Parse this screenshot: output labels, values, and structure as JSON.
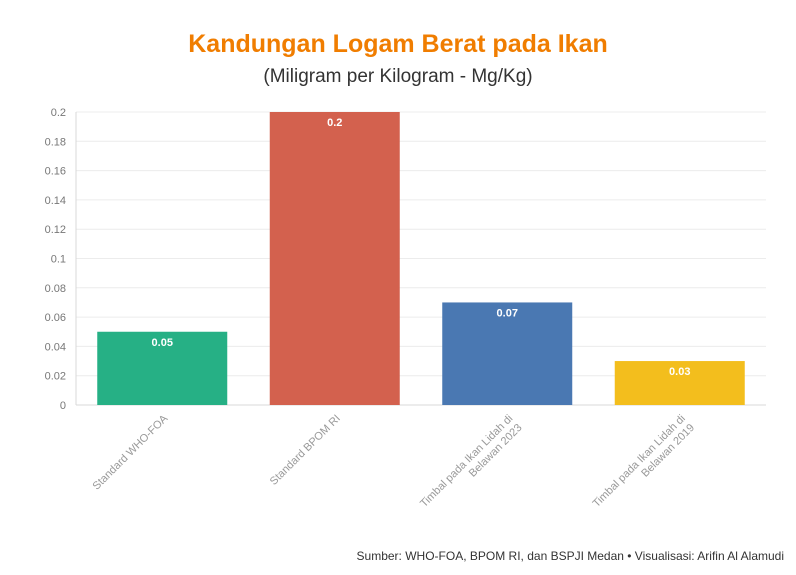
{
  "header": {
    "title": "Kandungan Logam Berat pada Ikan",
    "subtitle": "(Miligram per Kilogram - Mg/Kg)"
  },
  "footer": {
    "source": "Sumber: WHO-FOA, BPOM RI, dan BSPJI Medan • Visualisasi: Arifin Al Alamudi"
  },
  "chart_data": {
    "type": "bar",
    "title": "Kandungan Logam Berat pada Ikan",
    "subtitle": "(Miligram per Kilogram - Mg/Kg)",
    "categories": [
      "Standard WHO-FOA",
      "Standard BPOM RI",
      "Timbal pada Ikan Lidah di Belawan 2023",
      "Timbal pada Ikan Lidah di Belawan 2019"
    ],
    "category_lines": [
      [
        "Standard WHO-FOA"
      ],
      [
        "Standard BPOM RI"
      ],
      [
        "Timbal pada Ikan Lidah di",
        "Belawan 2023"
      ],
      [
        "Timbal pada Ikan Lidah di",
        "Belawan 2019"
      ]
    ],
    "values": [
      0.05,
      0.2,
      0.07,
      0.03
    ],
    "value_labels": [
      "0.05",
      "0.2",
      "0.07",
      "0.03"
    ],
    "colors": [
      "#26b085",
      "#d3614e",
      "#4a78b2",
      "#f3be1d"
    ],
    "ylim": [
      0,
      0.2
    ],
    "yticks": [
      0,
      0.02,
      0.04,
      0.06,
      0.08,
      0.1,
      0.12,
      0.14,
      0.16,
      0.18,
      0.2
    ],
    "ytick_labels": [
      "0",
      "0.02",
      "0.04",
      "0.06",
      "0.08",
      "0.1",
      "0.12",
      "0.14",
      "0.16",
      "0.18",
      "0.2"
    ],
    "xlabel": "",
    "ylabel": "",
    "grid": true,
    "legend": "none"
  }
}
